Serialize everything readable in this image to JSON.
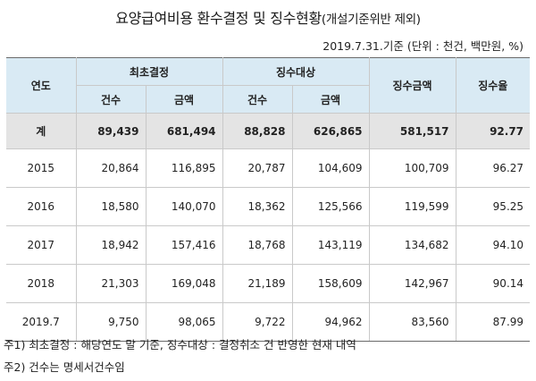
{
  "title": {
    "main": "요양급여비용 환수결정 및 징수현황",
    "sub": "(개설기준위반 제외)"
  },
  "unit_note": "2019.7.31.기준 (단위 : 천건, 백만원, %)",
  "table": {
    "headers": {
      "year": "연도",
      "decision_group": "최초결정",
      "collection_group": "징수대상",
      "collected_amount": "징수금액",
      "collection_rate": "징수율",
      "count": "건수",
      "amount": "금액"
    },
    "total": {
      "label": "계",
      "decision_count": "89,439",
      "decision_amount": "681,494",
      "target_count": "88,828",
      "target_amount": "626,865",
      "collected": "581,517",
      "rate": "92.77"
    },
    "rows": [
      {
        "year": "2015",
        "decision_count": "20,864",
        "decision_amount": "116,895",
        "target_count": "20,787",
        "target_amount": "104,609",
        "collected": "100,709",
        "rate": "96.27"
      },
      {
        "year": "2016",
        "decision_count": "18,580",
        "decision_amount": "140,070",
        "target_count": "18,362",
        "target_amount": "125,566",
        "collected": "119,599",
        "rate": "95.25"
      },
      {
        "year": "2017",
        "decision_count": "18,942",
        "decision_amount": "157,416",
        "target_count": "18,768",
        "target_amount": "143,119",
        "collected": "134,682",
        "rate": "94.10"
      },
      {
        "year": "2018",
        "decision_count": "21,303",
        "decision_amount": "169,048",
        "target_count": "21,189",
        "target_amount": "158,609",
        "collected": "142,967",
        "rate": "90.14"
      },
      {
        "year": "2019.7",
        "decision_count": "9,750",
        "decision_amount": "98,065",
        "target_count": "9,722",
        "target_amount": "94,962",
        "collected": "83,560",
        "rate": "87.99"
      }
    ]
  },
  "footnotes": {
    "note1": "주1) 최초결정 : 해당연도 말 기준, 징수대상 : 결정취소 건 반영한 현재 내역",
    "note2": "주2) 건수는 명세서건수임"
  }
}
